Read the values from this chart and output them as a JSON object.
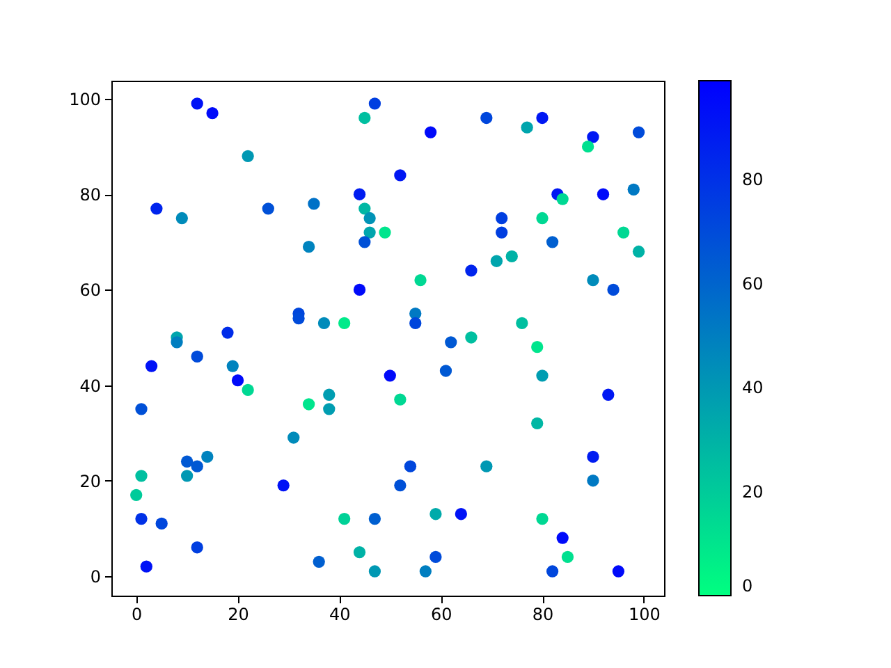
{
  "chart_data": {
    "type": "scatter",
    "marker": "circle",
    "x": [
      12,
      15,
      22,
      4,
      9,
      26,
      35,
      34,
      44,
      45,
      47,
      45,
      46,
      46,
      49,
      45,
      44,
      52,
      41,
      37,
      32,
      32,
      18,
      8,
      8,
      3,
      12,
      19,
      20,
      22,
      1,
      34,
      38,
      38,
      31,
      10,
      12,
      14,
      10,
      1,
      0,
      1,
      5,
      12,
      2,
      29,
      41,
      36,
      44,
      47,
      47,
      58,
      69,
      77,
      80,
      90,
      89,
      99,
      83,
      84,
      92,
      98,
      72,
      72,
      80,
      96,
      82,
      99,
      71,
      74,
      66,
      56,
      90,
      94,
      55,
      55,
      76,
      62,
      66,
      79,
      50,
      61,
      80,
      52,
      93,
      79,
      54,
      69,
      90,
      90,
      52,
      59,
      64,
      80,
      84,
      59,
      85,
      57,
      82,
      95
    ],
    "values": [
      99,
      97,
      88,
      77,
      75,
      77,
      78,
      69,
      80,
      96,
      99,
      77,
      75,
      72,
      72,
      70,
      60,
      84,
      53,
      53,
      55,
      54,
      51,
      50,
      49,
      44,
      46,
      44,
      41,
      39,
      35,
      36,
      38,
      35,
      29,
      24,
      23,
      25,
      21,
      21,
      17,
      12,
      11,
      6,
      2,
      19,
      12,
      3,
      5,
      12,
      1,
      93,
      96,
      94,
      96,
      92,
      90,
      93,
      80,
      79,
      80,
      81,
      75,
      72,
      75,
      72,
      70,
      68,
      66,
      67,
      64,
      62,
      62,
      60,
      55,
      53,
      53,
      49,
      50,
      48,
      42,
      43,
      42,
      37,
      38,
      32,
      23,
      23,
      25,
      20,
      19,
      13,
      13,
      12,
      8,
      4,
      4,
      1,
      1,
      1
    ],
    "cvalues": [
      92,
      95,
      40,
      85,
      45,
      68,
      55,
      48,
      88,
      25,
      75,
      28,
      42,
      35,
      10,
      68,
      95,
      90,
      8,
      45,
      72,
      70,
      82,
      35,
      50,
      92,
      70,
      48,
      95,
      15,
      68,
      10,
      38,
      38,
      45,
      65,
      65,
      48,
      40,
      25,
      20,
      80,
      72,
      75,
      92,
      92,
      18,
      62,
      30,
      62,
      40,
      95,
      72,
      35,
      90,
      90,
      12,
      70,
      90,
      15,
      95,
      52,
      75,
      75,
      15,
      15,
      62,
      30,
      35,
      30,
      85,
      15,
      45,
      70,
      52,
      72,
      25,
      65,
      25,
      10,
      95,
      65,
      38,
      15,
      90,
      28,
      72,
      40,
      88,
      52,
      68,
      33,
      92,
      15,
      95,
      70,
      12,
      50,
      72,
      95
    ],
    "xlim": [
      -4.9,
      104
    ],
    "ylim": [
      -4.1,
      103.8
    ],
    "xticks": [
      0,
      20,
      40,
      60,
      80,
      100
    ],
    "yticks": [
      0,
      20,
      40,
      60,
      80,
      100
    ],
    "clim": [
      0,
      99
    ],
    "cticks": [
      0,
      20,
      40,
      60,
      80
    ]
  }
}
